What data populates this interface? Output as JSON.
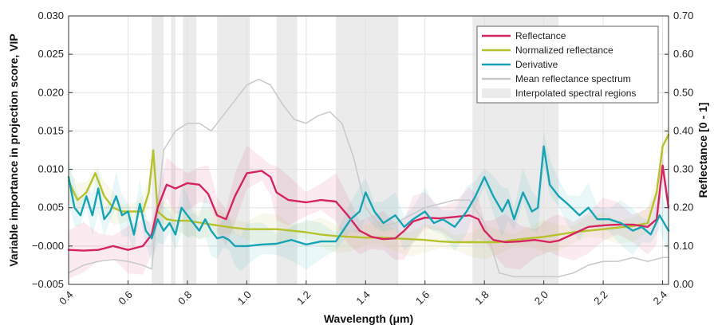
{
  "chart_data": {
    "type": "line",
    "xlabel": "Wavelength (μm)",
    "ylabel": "Variable importance in projection score, VIP",
    "y2label": "Reflectance [0 - 1]",
    "xlim": [
      0.4,
      2.42
    ],
    "ylim": [
      -0.005,
      0.03
    ],
    "y2lim": [
      0.0,
      0.7
    ],
    "x_ticks": [
      0.4,
      0.6,
      0.8,
      1.0,
      1.2,
      1.4,
      1.6,
      1.8,
      2.0,
      2.2,
      2.4
    ],
    "x_tick_labels": [
      "0.4",
      "0.6",
      "0.8",
      "1.0",
      "1.2",
      "1.4",
      "1.6",
      "1.8",
      "2.0",
      "2.2",
      "2.4"
    ],
    "y_ticks": [
      -0.005,
      0.0,
      0.005,
      0.01,
      0.015,
      0.02,
      0.025,
      0.03
    ],
    "y_tick_labels": [
      "−0.005",
      "−0.000",
      "0.005",
      "0.010",
      "0.015",
      "0.020",
      "0.025",
      "0.030"
    ],
    "y2_ticks": [
      0.0,
      0.1,
      0.2,
      0.3,
      0.4,
      0.5,
      0.6,
      0.7
    ],
    "y2_tick_labels": [
      "0.00",
      "0.10",
      "0.20",
      "0.30",
      "0.40",
      "0.50",
      "0.60",
      "0.70"
    ],
    "grid": true,
    "legend_position": "top-right",
    "interpolated_regions": [
      [
        0.68,
        0.72
      ],
      [
        0.745,
        0.76
      ],
      [
        0.785,
        0.83
      ],
      [
        0.9,
        1.01
      ],
      [
        1.1,
        1.17
      ],
      [
        1.3,
        1.51
      ],
      [
        1.76,
        2.05
      ]
    ],
    "series": [
      {
        "name": "Reflectance",
        "color": "#d6245e",
        "axis": "left",
        "x": [
          0.4,
          0.45,
          0.5,
          0.55,
          0.6,
          0.65,
          0.68,
          0.7,
          0.73,
          0.76,
          0.8,
          0.84,
          0.87,
          0.9,
          0.93,
          0.96,
          1.0,
          1.05,
          1.08,
          1.1,
          1.14,
          1.2,
          1.25,
          1.3,
          1.34,
          1.38,
          1.42,
          1.46,
          1.5,
          1.53,
          1.56,
          1.6,
          1.65,
          1.7,
          1.75,
          1.78,
          1.8,
          1.83,
          1.87,
          1.92,
          1.97,
          2.02,
          2.05,
          2.1,
          2.15,
          2.2,
          2.25,
          2.3,
          2.35,
          2.38,
          2.4,
          2.42
        ],
        "y": [
          -0.0005,
          -0.0006,
          -0.0005,
          0.0,
          -0.0005,
          0.0,
          0.0015,
          0.005,
          0.008,
          0.0075,
          0.0082,
          0.008,
          0.0068,
          0.004,
          0.0035,
          0.0065,
          0.0095,
          0.0098,
          0.009,
          0.007,
          0.006,
          0.0057,
          0.006,
          0.0058,
          0.004,
          0.002,
          0.0012,
          0.0009,
          0.001,
          0.002,
          0.0032,
          0.0037,
          0.0036,
          0.0038,
          0.004,
          0.0035,
          0.002,
          0.0008,
          0.0005,
          0.0006,
          0.0008,
          0.0005,
          0.0007,
          0.0016,
          0.0025,
          0.0027,
          0.0028,
          0.0028,
          0.0025,
          0.0035,
          0.0105,
          0.005
        ]
      },
      {
        "name": "Normalized reflectance",
        "color": "#b6c22c",
        "axis": "left",
        "x": [
          0.4,
          0.43,
          0.46,
          0.49,
          0.52,
          0.55,
          0.58,
          0.62,
          0.65,
          0.67,
          0.685,
          0.7,
          0.73,
          0.76,
          0.8,
          0.85,
          0.9,
          0.95,
          1.0,
          1.05,
          1.1,
          1.15,
          1.2,
          1.25,
          1.3,
          1.35,
          1.4,
          1.45,
          1.5,
          1.55,
          1.6,
          1.65,
          1.7,
          1.75,
          1.8,
          1.85,
          1.9,
          1.95,
          2.0,
          2.05,
          2.1,
          2.15,
          2.2,
          2.25,
          2.3,
          2.35,
          2.38,
          2.4,
          2.42
        ],
        "y": [
          0.0085,
          0.006,
          0.007,
          0.0095,
          0.0065,
          0.005,
          0.0045,
          0.0045,
          0.0045,
          0.007,
          0.0125,
          0.0045,
          0.0035,
          0.0033,
          0.0033,
          0.003,
          0.0027,
          0.0024,
          0.0022,
          0.0022,
          0.0022,
          0.002,
          0.0018,
          0.0015,
          0.0013,
          0.0012,
          0.0011,
          0.0011,
          0.001,
          0.0009,
          0.0008,
          0.0006,
          0.0005,
          0.0005,
          0.0005,
          0.0005,
          0.0008,
          0.001,
          0.0012,
          0.0015,
          0.0018,
          0.002,
          0.0022,
          0.0024,
          0.0026,
          0.003,
          0.007,
          0.013,
          0.0145
        ]
      },
      {
        "name": "Derivative",
        "color": "#16a3b4",
        "axis": "left",
        "x": [
          0.4,
          0.42,
          0.44,
          0.46,
          0.48,
          0.5,
          0.52,
          0.54,
          0.56,
          0.58,
          0.6,
          0.62,
          0.64,
          0.66,
          0.68,
          0.7,
          0.72,
          0.74,
          0.76,
          0.78,
          0.8,
          0.82,
          0.84,
          0.86,
          0.88,
          0.9,
          0.92,
          0.94,
          0.96,
          0.98,
          1.0,
          1.05,
          1.1,
          1.15,
          1.2,
          1.25,
          1.3,
          1.35,
          1.38,
          1.4,
          1.43,
          1.46,
          1.5,
          1.53,
          1.56,
          1.6,
          1.63,
          1.66,
          1.7,
          1.74,
          1.77,
          1.8,
          1.83,
          1.86,
          1.88,
          1.9,
          1.93,
          1.96,
          1.98,
          2.0,
          2.02,
          2.05,
          2.08,
          2.12,
          2.15,
          2.18,
          2.22,
          2.26,
          2.3,
          2.33,
          2.36,
          2.39,
          2.42
        ],
        "y": [
          0.009,
          0.005,
          0.004,
          0.0065,
          0.004,
          0.0075,
          0.0035,
          0.0045,
          0.0065,
          0.004,
          0.0045,
          0.0015,
          0.0055,
          0.002,
          0.001,
          0.0035,
          0.002,
          0.003,
          0.0015,
          0.005,
          0.004,
          0.003,
          0.002,
          0.0035,
          0.002,
          0.001,
          0.0012,
          0.0008,
          0.0,
          0.0,
          0.0,
          0.0002,
          0.0003,
          0.0008,
          0.0002,
          0.0006,
          0.0006,
          0.0035,
          0.0045,
          0.007,
          0.0045,
          0.003,
          0.004,
          0.0025,
          0.0035,
          0.0045,
          0.003,
          0.0035,
          0.0025,
          0.0045,
          0.0065,
          0.009,
          0.0065,
          0.0045,
          0.006,
          0.0035,
          0.007,
          0.0045,
          0.005,
          0.013,
          0.008,
          0.0065,
          0.0055,
          0.004,
          0.005,
          0.0035,
          0.0035,
          0.003,
          0.002,
          0.0025,
          0.0015,
          0.004,
          0.002
        ]
      },
      {
        "name": "Mean reflectance spectrum",
        "color": "#c9c9c9",
        "axis": "right",
        "x": [
          0.4,
          0.45,
          0.5,
          0.55,
          0.6,
          0.65,
          0.68,
          0.7,
          0.72,
          0.76,
          0.8,
          0.84,
          0.88,
          0.92,
          0.96,
          1.0,
          1.04,
          1.08,
          1.12,
          1.16,
          1.2,
          1.24,
          1.28,
          1.32,
          1.36,
          1.4,
          1.45,
          1.5,
          1.55,
          1.6,
          1.65,
          1.7,
          1.75,
          1.8,
          1.85,
          1.9,
          1.95,
          2.0,
          2.05,
          2.1,
          2.15,
          2.2,
          2.25,
          2.3,
          2.35,
          2.4,
          2.42
        ],
        "y": [
          0.03,
          0.05,
          0.06,
          0.065,
          0.06,
          0.05,
          0.04,
          0.2,
          0.35,
          0.4,
          0.42,
          0.42,
          0.4,
          0.44,
          0.48,
          0.52,
          0.535,
          0.52,
          0.47,
          0.43,
          0.42,
          0.44,
          0.45,
          0.42,
          0.33,
          0.2,
          0.15,
          0.16,
          0.18,
          0.2,
          0.21,
          0.22,
          0.22,
          0.16,
          0.03,
          0.02,
          0.02,
          0.02,
          0.02,
          0.03,
          0.05,
          0.06,
          0.06,
          0.07,
          0.06,
          0.07,
          0.07
        ]
      }
    ],
    "legend_entries": [
      {
        "label": "Reflectance",
        "color": "#d6245e",
        "kind": "line"
      },
      {
        "label": "Normalized reflectance",
        "color": "#b6c22c",
        "kind": "line"
      },
      {
        "label": "Derivative",
        "color": "#16a3b4",
        "kind": "line"
      },
      {
        "label": "Mean reflectance spectrum",
        "color": "#c9c9c9",
        "kind": "line"
      },
      {
        "label": "Interpolated spectral regions",
        "color": "#ebebeb",
        "kind": "patch"
      }
    ]
  }
}
